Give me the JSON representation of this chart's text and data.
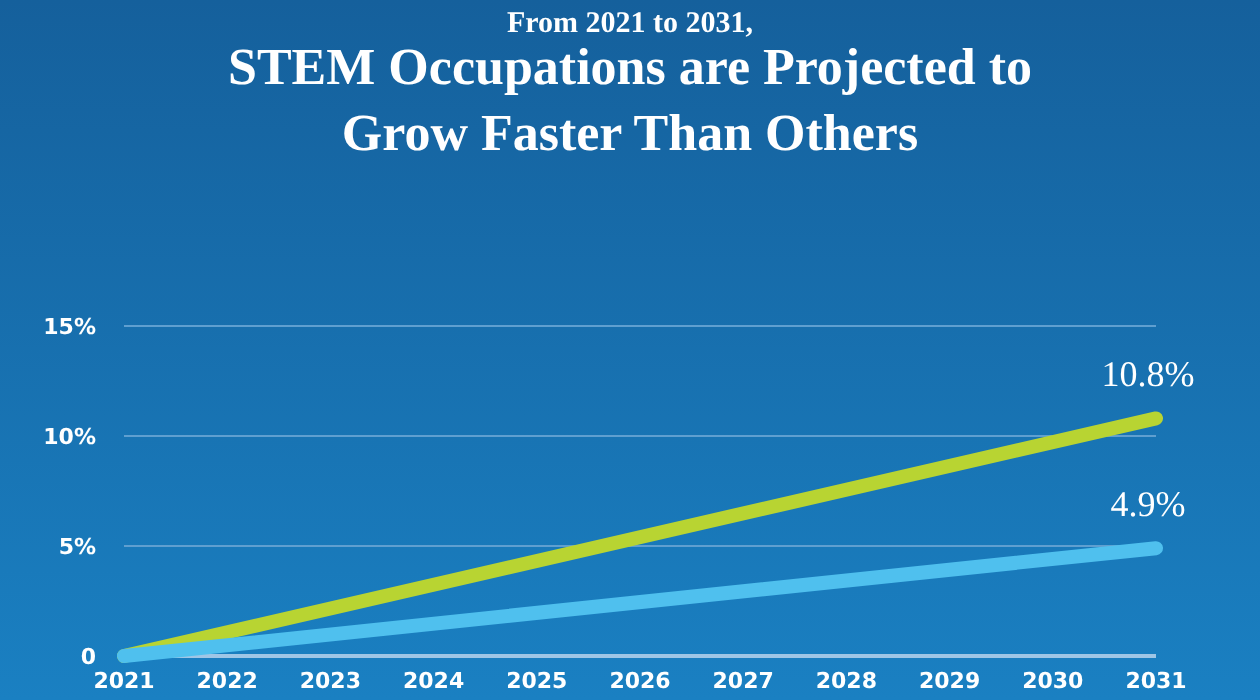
{
  "chart_data": {
    "type": "line",
    "subtitle": "From 2021 to 2031,",
    "title": "STEM Occupations are Projected to Grow Faster Than Others",
    "x": [
      2021,
      2031
    ],
    "series": [
      {
        "color": "#b8d432",
        "values": [
          0,
          10.8
        ],
        "value_labels": [
          null,
          "10.8%"
        ]
      },
      {
        "color": "#4fc0ee",
        "values": [
          0,
          4.9
        ],
        "value_labels": [
          null,
          "4.9%"
        ]
      }
    ],
    "xlim": [
      2021,
      2031
    ],
    "xticks": [
      2021,
      2022,
      2023,
      2024,
      2025,
      2026,
      2027,
      2028,
      2029,
      2030,
      2031
    ],
    "ylim": [
      0,
      15
    ],
    "yticks": [
      0,
      {
        "value": 5,
        "label": "5%"
      },
      {
        "value": 10,
        "label": "10%"
      },
      {
        "value": 15,
        "label": "15%"
      }
    ],
    "grid": "y",
    "marker": "none",
    "line_style": "solid"
  }
}
